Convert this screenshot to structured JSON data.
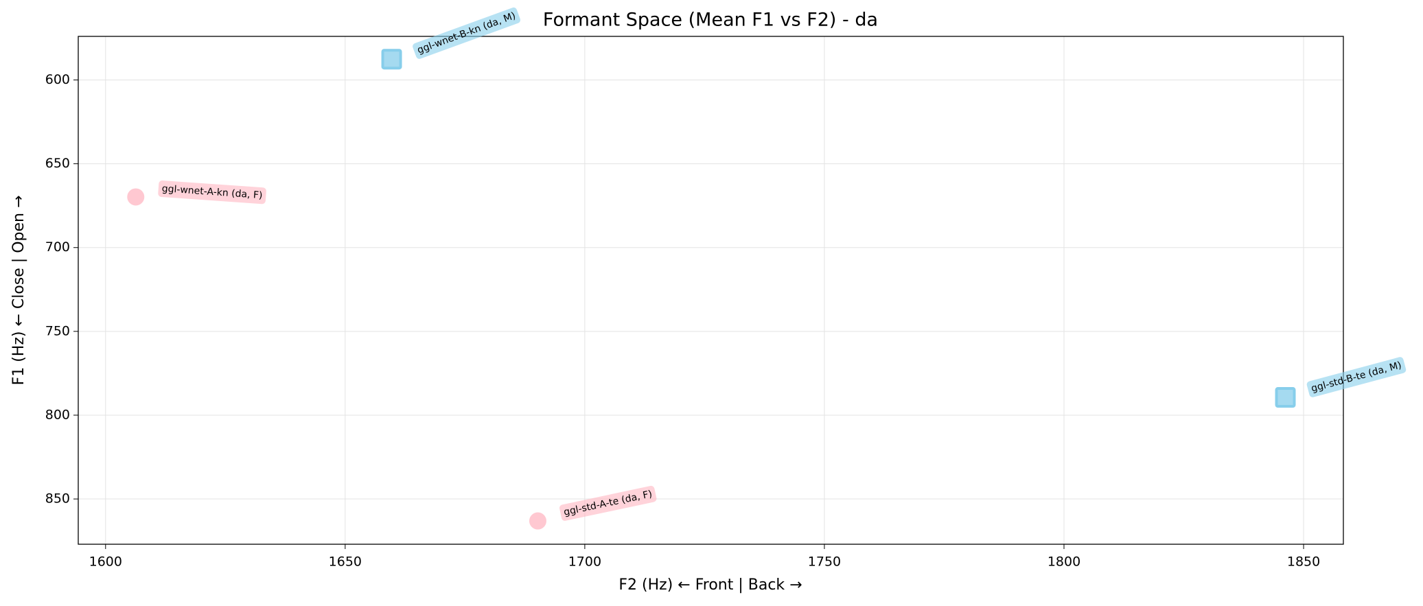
{
  "chart_data": {
    "type": "scatter",
    "title": "Formant Space (Mean F1 vs F2) - da",
    "x_label": "F2 (Hz) ← Front | Back →",
    "y_label": "F1 (Hz) ← Close | Open →",
    "x": [
      1659.7,
      1606.3,
      1846.2,
      1690.2
    ],
    "y": [
      587.6,
      669.8,
      789.4,
      863.1
    ],
    "labels": [
      "ggl-wnet-B-kn (da, M)",
      "ggl-wnet-A-kn (da, F)",
      "ggl-std-B-te (da, M)",
      "ggl-std-A-te (da, F)"
    ],
    "colors": [
      "#87ceeb",
      "#ffb6c1",
      "#87ceeb",
      "#ffb6c1"
    ],
    "markers": [
      "square",
      "circle",
      "square",
      "circle"
    ],
    "xlim": [
      1594.3,
      1858.3
    ],
    "ylim": [
      574,
      877
    ],
    "y_inverted": true,
    "xticks": [
      1600,
      1650,
      1700,
      1750,
      1800,
      1850
    ],
    "yticks": [
      600,
      650,
      700,
      750,
      800,
      850
    ],
    "grid": true
  }
}
